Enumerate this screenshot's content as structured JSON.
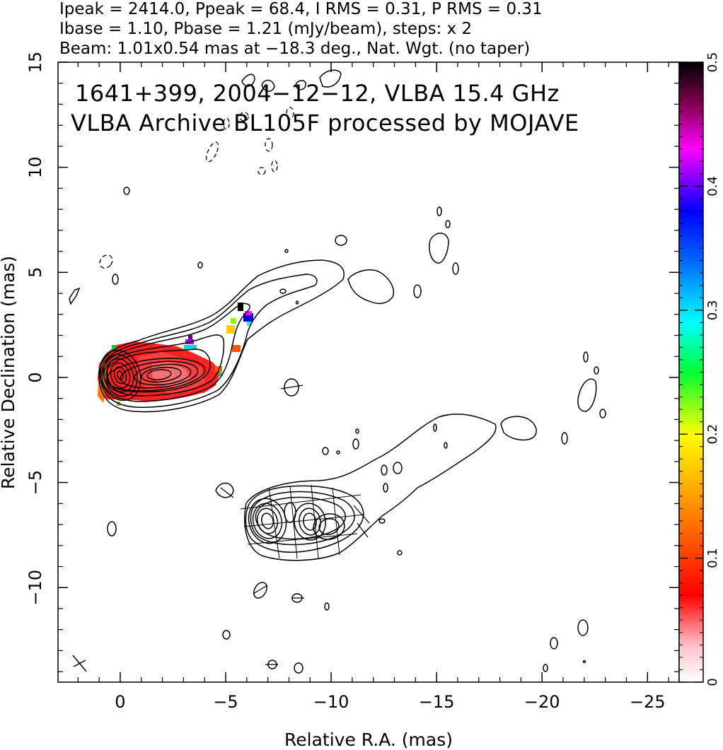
{
  "header": {
    "line1": "Ipeak = 2414.0, Ppeak = 68.4, I RMS = 0.31, P RMS = 0.31",
    "line2": "Ibase = 1.10, Pbase = 1.21 (mJy/beam), steps: x 2",
    "line3": "Beam: 1.01x0.54 mas at −18.3 deg., Nat. Wgt. (no taper)"
  },
  "chart_data": {
    "type": "heatmap",
    "title": "1641+399, 2004−12−12, VLBA 15.4 GHz",
    "subtitle": "VLBA Archive BL105F processed by MOJAVE",
    "xlabel": "Relative R.A. (mas)",
    "ylabel": "Relative Declination (mas)",
    "xlim": [
      2.95,
      -26.5
    ],
    "ylim": [
      -14.5,
      15
    ],
    "x_ticks": [
      0,
      -5,
      -10,
      -15,
      -20,
      -25
    ],
    "x_tick_labels": [
      "0",
      "−5",
      "−10",
      "−15",
      "−20",
      "−25"
    ],
    "y_ticks": [
      -10,
      -5,
      0,
      5,
      10,
      15
    ],
    "y_tick_labels": [
      "−10",
      "−5",
      "0",
      "5",
      "10",
      "15"
    ],
    "colorbar": {
      "range": [
        0,
        0.5
      ],
      "ticks": [
        0,
        0.1,
        0.2,
        0.3,
        0.4,
        0.5
      ],
      "tick_labels": [
        "0",
        "0.1",
        "0.2",
        "0.3",
        "0.4",
        "0.5"
      ],
      "colors": [
        "#ffffff",
        "#ff0000",
        "#ff8800",
        "#ffff00",
        "#00ff00",
        "#00ffff",
        "#0000ff",
        "#ff00ff",
        "#000000"
      ]
    },
    "components": [
      {
        "name": "core_image",
        "x": 0.0,
        "y": 0.0
      },
      {
        "name": "jet_knot_image",
        "x": -1.8,
        "y": 0.0
      },
      {
        "name": "core_beam_marker",
        "x": -7.0,
        "y": -7.0
      }
    ]
  }
}
